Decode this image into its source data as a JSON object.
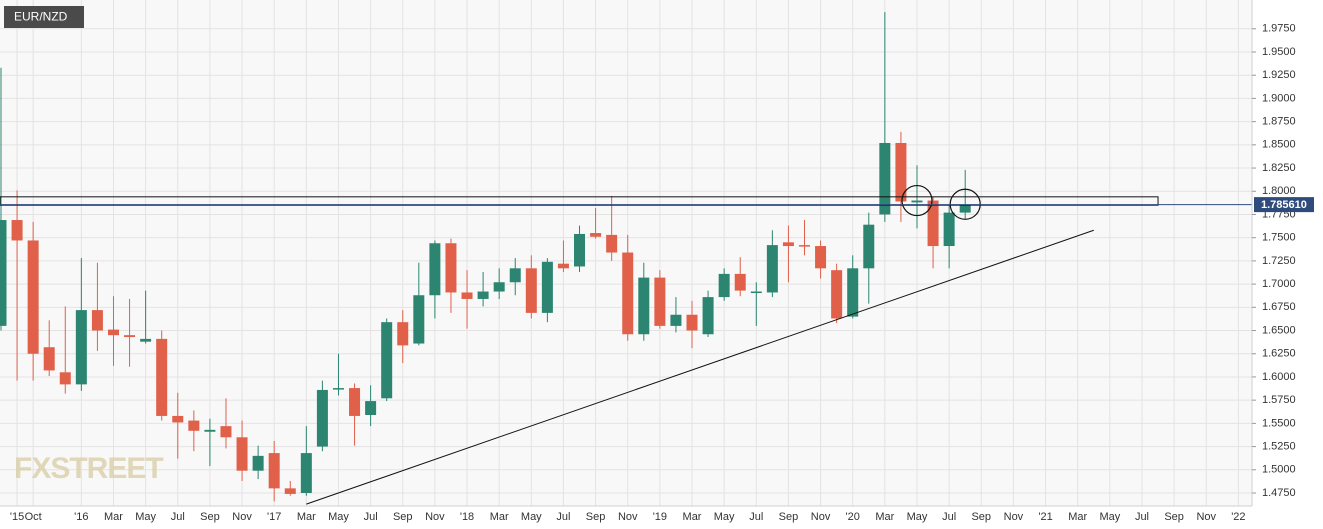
{
  "chart_data": {
    "type": "candlestick",
    "symbol": "EUR/NZD",
    "watermark": "FXSTREET",
    "categories": [
      null,
      "'15",
      "Oct",
      null,
      null,
      "'16",
      null,
      "Mar",
      null,
      "May",
      null,
      "Jul",
      null,
      "Sep",
      null,
      "Nov",
      null,
      "'17",
      null,
      "Mar",
      null,
      "May",
      null,
      "Jul",
      null,
      "Sep",
      null,
      "Nov",
      null,
      "'18",
      null,
      "Mar",
      null,
      "May",
      null,
      "Jul",
      null,
      "Sep",
      null,
      "Nov",
      null,
      "'19",
      null,
      "Mar",
      null,
      "May",
      null,
      "Jul",
      null,
      "Sep",
      null,
      "Nov",
      null,
      "'20",
      null,
      "Mar",
      null,
      "May",
      null,
      "Jul",
      null,
      "Sep",
      null,
      "Nov",
      null,
      "'21",
      null,
      "Mar",
      null,
      "May",
      null,
      "Jul",
      null,
      "Sep",
      null,
      "Nov",
      null,
      "'22"
    ],
    "open": [
      1.655,
      1.769,
      1.747,
      1.632,
      1.605,
      1.592,
      1.672,
      1.651,
      1.645,
      1.638,
      1.641,
      1.558,
      1.553,
      1.541,
      1.547,
      1.535,
      1.499,
      1.518,
      1.48,
      1.475,
      1.525,
      1.587,
      1.588,
      1.559,
      1.577,
      1.659,
      1.636,
      1.688,
      1.744,
      1.691,
      1.684,
      1.692,
      1.702,
      1.717,
      1.669,
      1.722,
      1.719,
      1.755,
      1.753,
      1.734,
      1.646,
      1.707,
      1.655,
      1.667,
      1.646,
      1.686,
      1.711,
      1.691,
      1.691,
      1.745,
      1.742,
      1.741,
      1.715,
      1.665,
      1.717,
      1.775,
      1.852,
      1.788,
      1.79,
      1.741,
      1.777,
      null,
      null,
      null,
      null,
      null,
      null,
      null,
      null,
      null,
      null,
      null,
      null,
      null,
      null,
      null,
      null,
      null
    ],
    "high": [
      1.933,
      1.801,
      1.767,
      1.661,
      1.676,
      1.728,
      1.723,
      1.687,
      1.684,
      1.693,
      1.65,
      1.583,
      1.564,
      1.555,
      1.577,
      1.553,
      1.526,
      1.531,
      1.488,
      1.547,
      1.596,
      1.625,
      1.593,
      1.591,
      1.663,
      1.672,
      1.723,
      1.747,
      1.749,
      1.715,
      1.713,
      1.717,
      1.728,
      1.731,
      1.728,
      1.747,
      1.763,
      1.782,
      1.795,
      1.753,
      1.723,
      1.715,
      1.686,
      1.682,
      1.693,
      1.717,
      1.729,
      1.702,
      1.758,
      1.763,
      1.769,
      1.747,
      1.722,
      1.731,
      1.777,
      1.993,
      1.864,
      1.828,
      1.794,
      1.785,
      1.823,
      null,
      null,
      null,
      null,
      null,
      null,
      null,
      null,
      null,
      null,
      null,
      null,
      null,
      null,
      null,
      null,
      null
    ],
    "low": [
      1.65,
      1.596,
      1.596,
      1.601,
      1.582,
      1.585,
      1.628,
      1.612,
      1.611,
      1.636,
      1.553,
      1.512,
      1.52,
      1.504,
      1.523,
      1.488,
      1.49,
      1.466,
      1.472,
      1.472,
      1.52,
      1.58,
      1.526,
      1.547,
      1.574,
      1.615,
      1.634,
      1.663,
      1.669,
      1.652,
      1.676,
      1.684,
      1.688,
      1.663,
      1.659,
      1.713,
      1.713,
      1.749,
      1.725,
      1.639,
      1.639,
      1.652,
      1.648,
      1.631,
      1.643,
      1.682,
      1.687,
      1.655,
      1.686,
      1.702,
      1.731,
      1.706,
      1.658,
      1.663,
      1.679,
      1.767,
      1.767,
      1.76,
      1.717,
      1.717,
      1.771,
      null,
      null,
      null,
      null,
      null,
      null,
      null,
      null,
      null,
      null,
      null,
      null,
      null,
      null,
      null,
      null,
      null
    ],
    "close": [
      1.769,
      1.747,
      1.625,
      1.607,
      1.592,
      1.672,
      1.65,
      1.645,
      1.643,
      1.641,
      1.558,
      1.551,
      1.542,
      1.543,
      1.535,
      1.499,
      1.515,
      1.48,
      1.474,
      1.518,
      1.586,
      1.588,
      1.558,
      1.574,
      1.659,
      1.634,
      1.688,
      1.744,
      1.691,
      1.684,
      1.692,
      1.702,
      1.717,
      1.669,
      1.724,
      1.717,
      1.754,
      1.751,
      1.734,
      1.646,
      1.707,
      1.655,
      1.667,
      1.65,
      1.686,
      1.711,
      1.693,
      1.692,
      1.742,
      1.741,
      1.741,
      1.717,
      1.663,
      1.717,
      1.764,
      1.852,
      1.789,
      1.79,
      1.741,
      1.777,
      1.7856,
      null,
      null,
      null,
      null,
      null,
      null,
      null,
      null,
      null,
      null,
      null,
      null,
      null,
      null,
      null,
      null,
      null
    ],
    "up_color": "#2b8570",
    "down_color": "#e0604a",
    "current_price": 1.78561,
    "current_price_label": "1.785610",
    "ylim": [
      1.461,
      2.006
    ],
    "yticks": [
      {
        "value": 1.475,
        "label": "1.4750"
      },
      {
        "value": 1.5,
        "label": "1.5000"
      },
      {
        "value": 1.525,
        "label": "1.5250"
      },
      {
        "value": 1.55,
        "label": "1.5500"
      },
      {
        "value": 1.575,
        "label": "1.5750"
      },
      {
        "value": 1.6,
        "label": "1.6000"
      },
      {
        "value": 1.625,
        "label": "1.6250"
      },
      {
        "value": 1.65,
        "label": "1.6500"
      },
      {
        "value": 1.675,
        "label": "1.6750"
      },
      {
        "value": 1.7,
        "label": "1.7000"
      },
      {
        "value": 1.725,
        "label": "1.7250"
      },
      {
        "value": 1.75,
        "label": "1.7500"
      },
      {
        "value": 1.775,
        "label": "1.7750"
      },
      {
        "value": 1.8,
        "label": "1.8000"
      },
      {
        "value": 1.825,
        "label": "1.8250"
      },
      {
        "value": 1.85,
        "label": "1.8500"
      },
      {
        "value": 1.875,
        "label": "1.8750"
      },
      {
        "value": 1.9,
        "label": "1.9000"
      },
      {
        "value": 1.925,
        "label": "1.9250"
      },
      {
        "value": 1.95,
        "label": "1.9500"
      },
      {
        "value": 1.975,
        "label": "1.9750"
      }
    ],
    "grid": true,
    "zone": {
      "low": 1.785,
      "high": 1.794,
      "end": 72
    },
    "trendline": {
      "start": [
        19,
        1.463
      ],
      "end": [
        68,
        1.758
      ]
    },
    "circles": [
      {
        "x": 57,
        "y": 1.79
      },
      {
        "x": 60,
        "y": 1.786
      }
    ]
  }
}
